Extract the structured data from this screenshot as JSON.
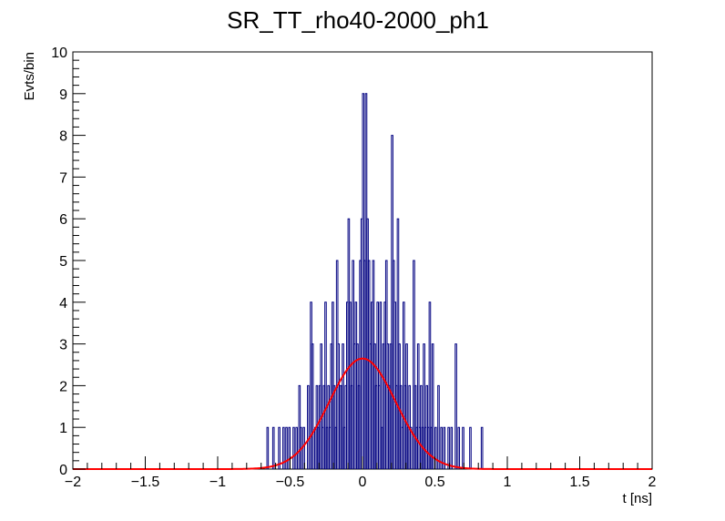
{
  "chart_data": {
    "type": "histogram",
    "title": "SR_TT_rho40-2000_ph1",
    "xlabel": "t [ns]",
    "ylabel": "Evts/bin",
    "xlim": [
      -2,
      2
    ],
    "ylim": [
      0,
      10
    ],
    "bin_width": 0.01,
    "xticks": [
      "−2",
      "−1.5",
      "−1",
      "−0.5",
      "0",
      "0.5",
      "1",
      "1.5",
      "2"
    ],
    "yticks": [
      "0",
      "1",
      "2",
      "3",
      "4",
      "5",
      "6",
      "7",
      "8",
      "9",
      "10"
    ],
    "histogram_color": "#000080",
    "fit_color": "#ff0000",
    "counts": [
      [
        -0.66,
        1
      ],
      [
        -0.62,
        1
      ],
      [
        -0.58,
        1
      ],
      [
        -0.55,
        1
      ],
      [
        -0.53,
        1
      ],
      [
        -0.51,
        1
      ],
      [
        -0.48,
        1
      ],
      [
        -0.46,
        1
      ],
      [
        -0.44,
        2
      ],
      [
        -0.43,
        1
      ],
      [
        -0.41,
        1
      ],
      [
        -0.38,
        2
      ],
      [
        -0.36,
        4
      ],
      [
        -0.35,
        3
      ],
      [
        -0.33,
        1
      ],
      [
        -0.32,
        2
      ],
      [
        -0.31,
        1
      ],
      [
        -0.3,
        2
      ],
      [
        -0.29,
        3
      ],
      [
        -0.28,
        1
      ],
      [
        -0.27,
        2
      ],
      [
        -0.26,
        4
      ],
      [
        -0.25,
        1
      ],
      [
        -0.24,
        2
      ],
      [
        -0.23,
        1
      ],
      [
        -0.22,
        3
      ],
      [
        -0.21,
        4
      ],
      [
        -0.2,
        2
      ],
      [
        -0.19,
        1
      ],
      [
        -0.18,
        5
      ],
      [
        -0.17,
        3
      ],
      [
        -0.16,
        2
      ],
      [
        -0.15,
        2
      ],
      [
        -0.14,
        3
      ],
      [
        -0.13,
        1
      ],
      [
        -0.12,
        2
      ],
      [
        -0.11,
        4
      ],
      [
        -0.1,
        6
      ],
      [
        -0.09,
        4
      ],
      [
        -0.08,
        2
      ],
      [
        -0.07,
        5
      ],
      [
        -0.06,
        3
      ],
      [
        -0.05,
        4
      ],
      [
        -0.04,
        3
      ],
      [
        -0.03,
        2
      ],
      [
        -0.02,
        5
      ],
      [
        -0.01,
        6
      ],
      [
        0.0,
        9
      ],
      [
        0.01,
        5
      ],
      [
        0.02,
        9
      ],
      [
        0.03,
        6
      ],
      [
        0.04,
        5
      ],
      [
        0.05,
        3
      ],
      [
        0.06,
        4
      ],
      [
        0.07,
        5
      ],
      [
        0.08,
        3
      ],
      [
        0.09,
        2
      ],
      [
        0.1,
        4
      ],
      [
        0.11,
        2
      ],
      [
        0.12,
        4
      ],
      [
        0.13,
        1
      ],
      [
        0.14,
        3
      ],
      [
        0.15,
        4
      ],
      [
        0.16,
        5
      ],
      [
        0.17,
        3
      ],
      [
        0.18,
        2
      ],
      [
        0.19,
        3
      ],
      [
        0.2,
        8
      ],
      [
        0.21,
        5
      ],
      [
        0.22,
        4
      ],
      [
        0.23,
        2
      ],
      [
        0.24,
        6
      ],
      [
        0.25,
        3
      ],
      [
        0.26,
        2
      ],
      [
        0.27,
        1
      ],
      [
        0.28,
        4
      ],
      [
        0.29,
        2
      ],
      [
        0.3,
        3
      ],
      [
        0.31,
        1
      ],
      [
        0.32,
        2
      ],
      [
        0.33,
        1
      ],
      [
        0.35,
        5
      ],
      [
        0.36,
        2
      ],
      [
        0.37,
        1
      ],
      [
        0.38,
        3
      ],
      [
        0.39,
        1
      ],
      [
        0.4,
        2
      ],
      [
        0.41,
        1
      ],
      [
        0.42,
        3
      ],
      [
        0.43,
        1
      ],
      [
        0.44,
        2
      ],
      [
        0.45,
        1
      ],
      [
        0.46,
        4
      ],
      [
        0.47,
        1
      ],
      [
        0.48,
        3
      ],
      [
        0.5,
        1
      ],
      [
        0.52,
        2
      ],
      [
        0.54,
        1
      ],
      [
        0.56,
        1
      ],
      [
        0.59,
        1
      ],
      [
        0.61,
        1
      ],
      [
        0.64,
        3
      ],
      [
        0.66,
        1
      ],
      [
        0.69,
        1
      ],
      [
        0.74,
        1
      ],
      [
        0.82,
        1
      ]
    ],
    "fit": {
      "function": "gaussian",
      "amplitude": 2.65,
      "mean": 0.0,
      "sigma": 0.23
    },
    "grid": false,
    "legend": "none"
  }
}
